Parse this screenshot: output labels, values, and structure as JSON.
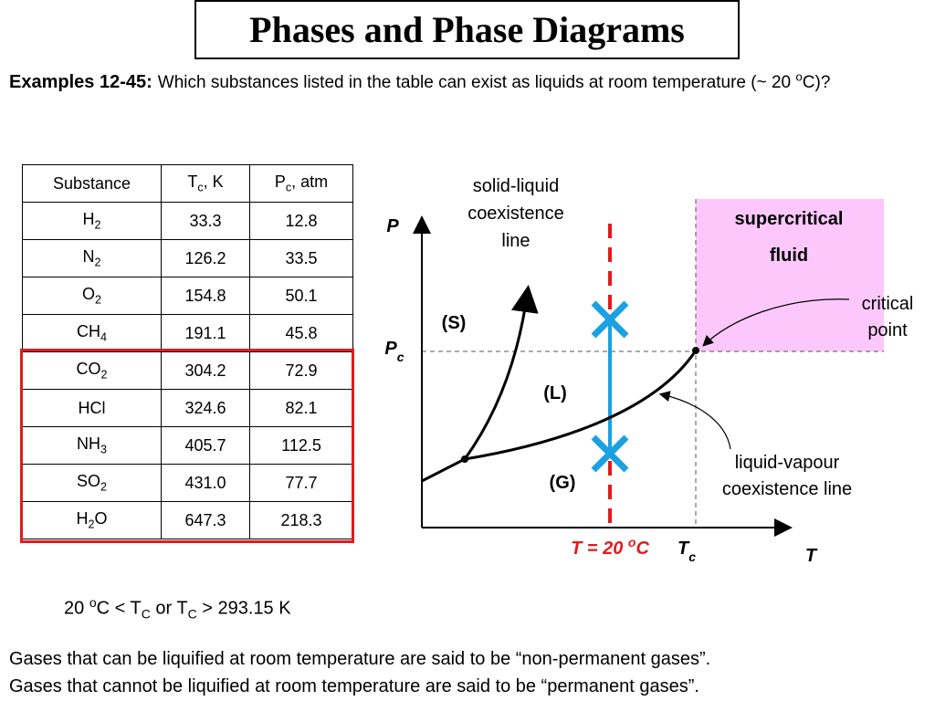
{
  "header": {
    "title": "Phases and Phase Diagrams"
  },
  "question": {
    "label": "Examples 12-45:",
    "text": [
      {
        "t": "Which substances listed in the table can exist as liquids at room temperature (~ 20 "
      },
      {
        "t": "o",
        "s": "sup"
      },
      {
        "t": "C)?"
      }
    ]
  },
  "table": {
    "columns": [
      [
        {
          "t": "Substance"
        }
      ],
      [
        {
          "t": "T"
        },
        {
          "t": "c",
          "s": "sub"
        },
        {
          "t": ", K"
        }
      ],
      [
        {
          "t": "P"
        },
        {
          "t": "c",
          "s": "sub"
        },
        {
          "t": ", atm"
        }
      ]
    ],
    "rows": [
      [
        [
          {
            "t": "H"
          },
          {
            "t": "2",
            "s": "sub"
          }
        ],
        "33.3",
        "12.8"
      ],
      [
        [
          {
            "t": "N"
          },
          {
            "t": "2",
            "s": "sub"
          }
        ],
        "126.2",
        "33.5"
      ],
      [
        [
          {
            "t": "O"
          },
          {
            "t": "2",
            "s": "sub"
          }
        ],
        "154.8",
        "50.1"
      ],
      [
        [
          {
            "t": "CH"
          },
          {
            "t": "4",
            "s": "sub"
          }
        ],
        "191.1",
        "45.8"
      ],
      [
        [
          {
            "t": "CO"
          },
          {
            "t": "2",
            "s": "sub"
          }
        ],
        "304.2",
        "72.9"
      ],
      [
        [
          {
            "t": "HCl"
          }
        ],
        "324.6",
        "82.1"
      ],
      [
        [
          {
            "t": "NH"
          },
          {
            "t": "3",
            "s": "sub"
          }
        ],
        "405.7",
        "112.5"
      ],
      [
        [
          {
            "t": "SO"
          },
          {
            "t": "2",
            "s": "sub"
          }
        ],
        "431.0",
        "77.7"
      ],
      [
        [
          {
            "t": "H"
          },
          {
            "t": "2",
            "s": "sub"
          },
          {
            "t": "O"
          }
        ],
        "647.3",
        "218.3"
      ]
    ]
  },
  "diagram": {
    "p_axis": [
      {
        "t": "P"
      }
    ],
    "pc": [
      {
        "t": "P"
      },
      {
        "t": "c",
        "s": "sub"
      }
    ],
    "t_axis": [
      {
        "t": "T"
      }
    ],
    "tc": [
      {
        "t": "T"
      },
      {
        "t": "c",
        "s": "sub"
      }
    ],
    "room_t": [
      {
        "t": "T = 20 "
      },
      {
        "t": "o",
        "s": "sup"
      },
      {
        "t": "C"
      }
    ],
    "solid": "(S)",
    "liquid": "(L)",
    "gas": "(G)",
    "supercritical": [
      "supercritical",
      "fluid"
    ],
    "critical_point": [
      "critical",
      "point"
    ],
    "solid_liquid_line": [
      "solid-liquid",
      "coexistence",
      "line"
    ],
    "liquid_vapour_line": [
      "liquid-vapour",
      "coexistence line"
    ]
  },
  "condition": [
    {
      "t": "20 "
    },
    {
      "t": "o",
      "s": "sup"
    },
    {
      "t": "C < T"
    },
    {
      "t": "C",
      "s": "sub"
    },
    {
      "t": " or T"
    },
    {
      "t": "C",
      "s": "sub"
    },
    {
      "t": " > 293.15 K"
    }
  ],
  "footer": [
    "Gases that can be liquified at room temperature are said to be “non-permanent gases”.",
    "Gases that cannot be liquified at room temperature are said to be “permanent gases”."
  ]
}
